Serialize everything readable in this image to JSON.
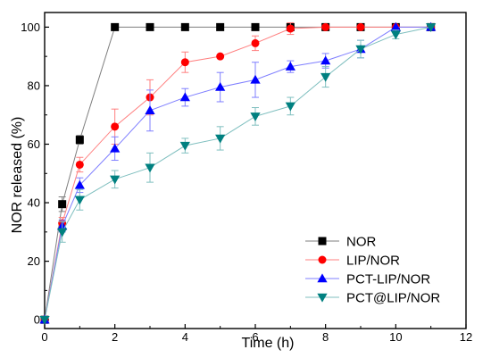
{
  "chart_data": {
    "type": "line",
    "xlabel": "Time (h)",
    "ylabel": "NOR released (%)",
    "xlim": [
      0,
      12
    ],
    "ylim": [
      -3,
      105
    ],
    "xticks": [
      0,
      2,
      4,
      6,
      8,
      10,
      12
    ],
    "yticks": [
      0,
      20,
      40,
      60,
      80,
      100
    ],
    "legend_position": "bottom-right",
    "grid": false,
    "series": [
      {
        "name": "NOR",
        "color": "#000000",
        "line_color": "#7f7f7f",
        "marker": "square",
        "x": [
          0,
          0.5,
          1,
          2,
          3,
          4,
          5,
          6,
          7,
          8,
          9,
          10,
          11
        ],
        "y": [
          0,
          39.5,
          61.5,
          100,
          100,
          100,
          100,
          100,
          100,
          100,
          100,
          100,
          100
        ],
        "err": [
          0,
          2.5,
          1.5,
          0,
          0,
          0,
          0,
          0,
          0,
          0,
          0,
          0,
          0
        ]
      },
      {
        "name": "LIP/NOR",
        "color": "#ff0000",
        "line_color": "#ff7f7f",
        "marker": "circle",
        "x": [
          0,
          0.5,
          1,
          2,
          3,
          4,
          5,
          6,
          7,
          8,
          9,
          10,
          11
        ],
        "y": [
          0,
          33,
          53,
          66,
          76,
          88,
          90,
          94.5,
          99.5,
          100,
          100,
          100,
          100
        ],
        "err": [
          0,
          2,
          2.5,
          6,
          6,
          3.5,
          0,
          2.5,
          2,
          0,
          0,
          0,
          0
        ]
      },
      {
        "name": "PCT-LIP/NOR",
        "color": "#0000ff",
        "line_color": "#7f7fff",
        "marker": "triangle-up",
        "x": [
          0,
          0.5,
          1,
          2,
          3,
          4,
          5,
          6,
          7,
          8,
          9,
          10,
          11
        ],
        "y": [
          0,
          32,
          46,
          58.5,
          71.5,
          76,
          79.5,
          82,
          86.5,
          88.5,
          92.5,
          100,
          100
        ],
        "err": [
          0,
          2,
          2.5,
          4,
          7,
          3,
          5,
          6,
          2,
          2.5,
          3,
          0,
          0
        ]
      },
      {
        "name": "PCT@LIP/NOR",
        "color": "#008080",
        "line_color": "#7fbfbf",
        "marker": "triangle-down",
        "x": [
          0,
          0.5,
          1,
          2,
          3,
          4,
          5,
          6,
          7,
          8,
          9,
          10,
          11
        ],
        "y": [
          0,
          30,
          41,
          48,
          52,
          59.5,
          62,
          69.5,
          73,
          83,
          92.5,
          97.5,
          100
        ],
        "err": [
          0,
          3.5,
          3.5,
          3,
          5,
          2.5,
          4,
          3,
          3,
          3.5,
          3,
          1.5,
          0
        ]
      }
    ]
  }
}
